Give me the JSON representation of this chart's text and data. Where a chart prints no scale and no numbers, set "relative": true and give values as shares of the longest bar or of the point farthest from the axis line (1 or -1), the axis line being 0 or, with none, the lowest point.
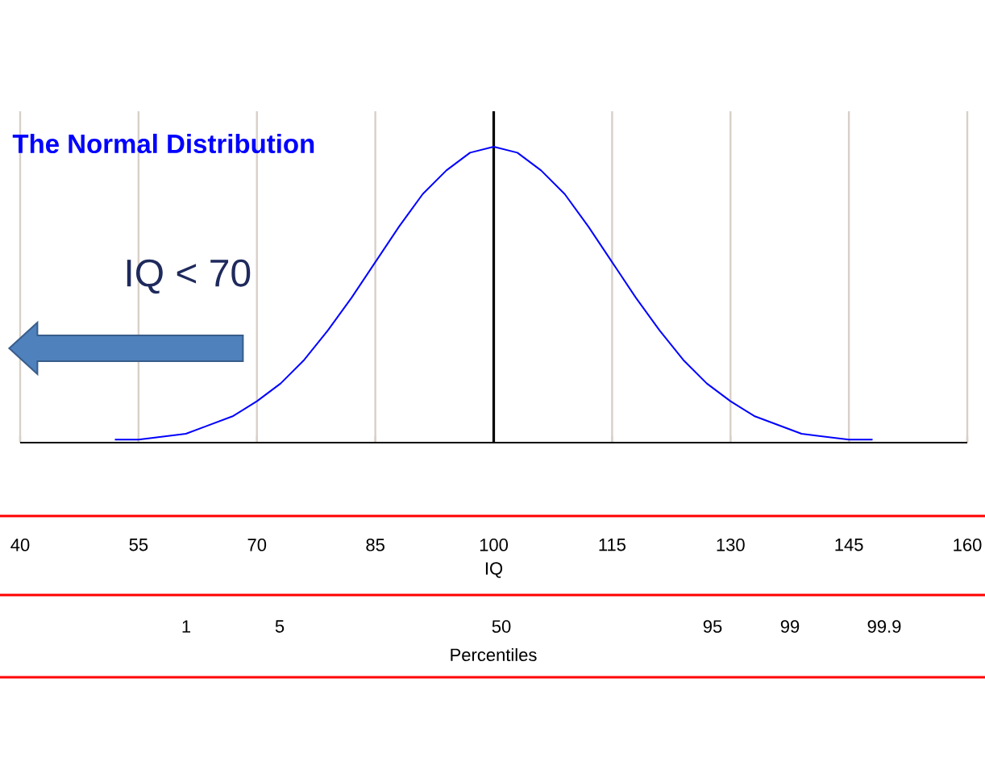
{
  "chart_data": {
    "type": "line",
    "title": "The Normal Distribution",
    "xlabel": "IQ",
    "relative": true,
    "xlim": [
      40,
      160
    ],
    "xticks": [
      40,
      55,
      70,
      85,
      100,
      115,
      130,
      145,
      160
    ],
    "grid": "x",
    "marker": "none",
    "line_style": "solid",
    "ref_lines": [
      {
        "axis": "x",
        "value": 100,
        "color": "#000000"
      }
    ],
    "annotations": [
      "IQ < 70",
      "Percentiles",
      "1",
      "5",
      "50",
      "95",
      "99",
      "99.9"
    ],
    "series": [
      {
        "color": "#0000ff",
        "x": [
          52,
          55,
          58,
          61,
          64,
          67,
          70,
          73,
          76,
          79,
          82,
          85,
          88,
          91,
          94,
          97,
          100,
          103,
          106,
          109,
          112,
          115,
          118,
          121,
          124,
          127,
          130,
          133,
          136,
          139,
          142,
          145,
          148
        ],
        "values": [
          0.01,
          0.01,
          0.02,
          0.03,
          0.06,
          0.09,
          0.14,
          0.2,
          0.28,
          0.38,
          0.49,
          0.61,
          0.73,
          0.84,
          0.92,
          0.98,
          1,
          0.98,
          0.92,
          0.84,
          0.73,
          0.61,
          0.49,
          0.38,
          0.28,
          0.2,
          0.14,
          0.09,
          0.06,
          0.03,
          0.02,
          0.01,
          0.01
        ]
      }
    ]
  }
}
